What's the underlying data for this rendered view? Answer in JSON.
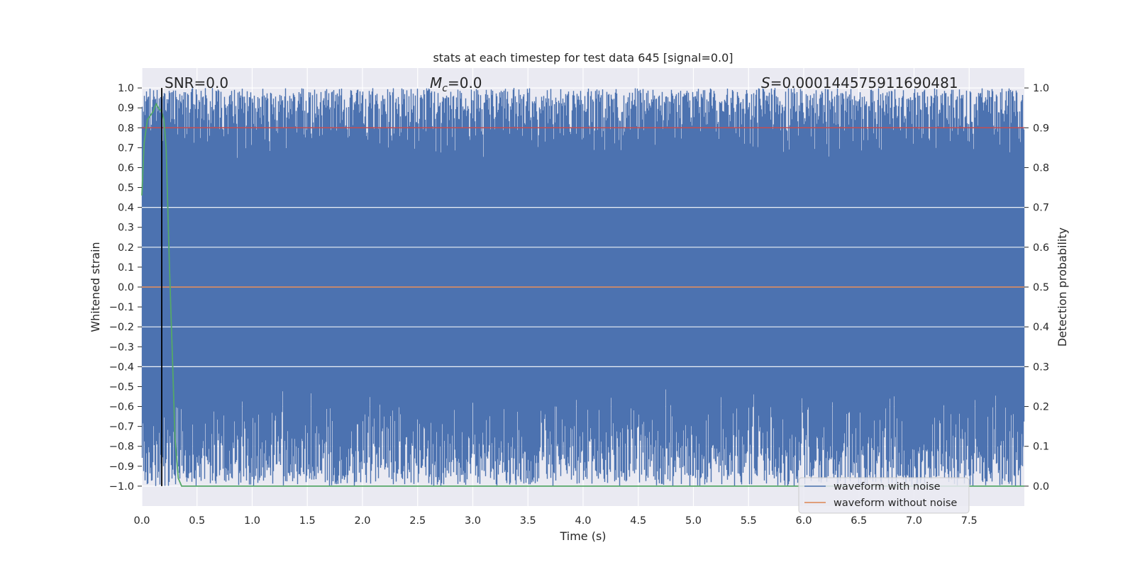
{
  "chart_data": {
    "type": "line",
    "title": "stats at each timestep for test data 645 [signal=0.0]",
    "xlabel": "Time (s)",
    "ylabel": "Whitened strain",
    "y2label": "Detection probability",
    "xlim": [
      0.0,
      8.0
    ],
    "ylim": [
      -1.1,
      1.1
    ],
    "y2lim": [
      -0.05,
      1.05
    ],
    "xticks": [
      "0.0",
      "0.5",
      "1.0",
      "1.5",
      "2.0",
      "2.5",
      "3.0",
      "3.5",
      "4.0",
      "4.5",
      "5.0",
      "5.5",
      "6.0",
      "6.5",
      "7.0",
      "7.5"
    ],
    "yticks": [
      "1.0",
      "0.9",
      "0.8",
      "0.7",
      "0.6",
      "0.5",
      "0.4",
      "0.3",
      "0.2",
      "0.1",
      "0.0",
      "−0.1",
      "−0.2",
      "−0.3",
      "−0.4",
      "−0.5",
      "−0.6",
      "−0.7",
      "−0.8",
      "−0.9",
      "−1.0"
    ],
    "y2ticks": [
      "1.0",
      "0.9",
      "0.8",
      "0.7",
      "0.6",
      "0.5",
      "0.4",
      "0.3",
      "0.2",
      "0.1",
      "0.0"
    ],
    "annotations": {
      "snr": "SNR=0.0",
      "mc_symbol": "M",
      "mc_sub": "c",
      "mc_value": "=0.0",
      "s_symbol": "S",
      "s_value": "=0.000144575911690481"
    },
    "series": [
      {
        "name": "waveform with noise",
        "color": "#4c72b0",
        "axis": "left",
        "description": "noisy whitened strain, oscillating between about -1.0 and 1.0 across 0-8 s"
      },
      {
        "name": "waveform without noise",
        "color": "#dd8452",
        "axis": "left",
        "values": {
          "x": [
            0.0,
            8.0
          ],
          "y": [
            0.0,
            0.0
          ]
        }
      },
      {
        "name": "detection probability",
        "color": "#55a868",
        "axis": "right",
        "values": {
          "x": [
            0.0,
            0.02,
            0.05,
            0.1,
            0.13,
            0.15,
            0.18,
            0.2,
            0.22,
            0.25,
            0.28,
            0.3,
            0.33,
            0.36,
            0.4,
            8.0
          ],
          "y": [
            0.73,
            0.86,
            0.92,
            0.94,
            0.96,
            0.95,
            0.94,
            0.92,
            0.85,
            0.55,
            0.3,
            0.12,
            0.02,
            0.0,
            0.0,
            0.0
          ]
        }
      },
      {
        "name": "threshold",
        "color": "#c44e52",
        "axis": "right",
        "values": {
          "x": [
            0.0,
            8.0
          ],
          "y": [
            0.9,
            0.9
          ]
        }
      },
      {
        "name": "marker",
        "color": "#000000",
        "axis": "left",
        "values": {
          "x": [
            0.18,
            0.18
          ],
          "y": [
            -1.0,
            1.0
          ]
        }
      }
    ],
    "legend": {
      "position": "lower-right",
      "entries": [
        {
          "label": "waveform with noise",
          "color": "#4c72b0"
        },
        {
          "label": "waveform without noise",
          "color": "#dd8452"
        }
      ]
    },
    "grid": true,
    "background": "#eaeaf2"
  }
}
